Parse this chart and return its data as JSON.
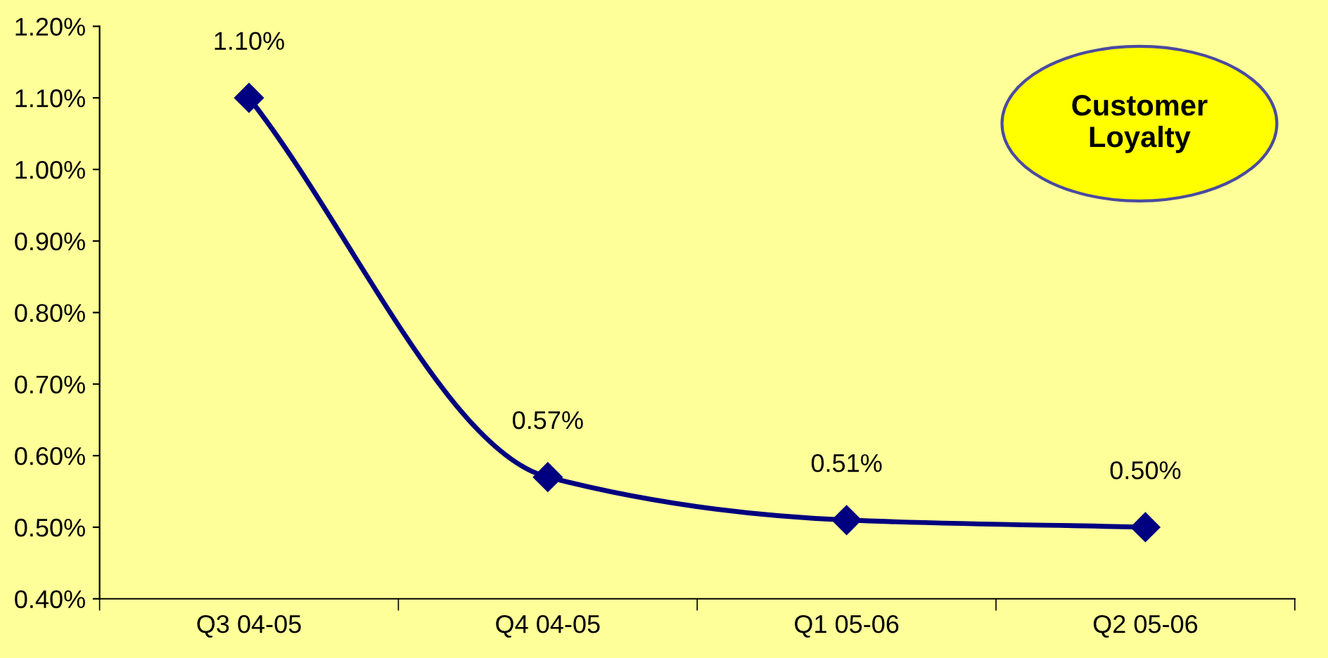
{
  "chart_data": {
    "type": "line",
    "categories": [
      "Q3 04-05",
      "Q4 04-05",
      "Q1 05-06",
      "Q2 05-06"
    ],
    "series": [
      {
        "color": "#000080",
        "values": [
          1.1,
          0.57,
          0.51,
          0.5
        ],
        "value_labels": [
          "1.10%",
          "0.57%",
          "0.51%",
          "0.50%"
        ]
      }
    ],
    "ylim": [
      0.4,
      1.2
    ],
    "yticks": [
      {
        "value": 0.4,
        "label": "0.40%"
      },
      {
        "value": 0.5,
        "label": "0.50%"
      },
      {
        "value": 0.6,
        "label": "0.60%"
      },
      {
        "value": 0.7,
        "label": "0.70%"
      },
      {
        "value": 0.8,
        "label": "0.80%"
      },
      {
        "value": 0.9,
        "label": "0.90%"
      },
      {
        "value": 1.0,
        "label": "1.00%"
      },
      {
        "value": 1.1,
        "label": "1.10%"
      },
      {
        "value": 1.2,
        "label": "1.20%"
      }
    ],
    "annotations": [
      "Customer\nLoyalty"
    ],
    "marker": "diamond",
    "line_style": "solid",
    "grid": false
  }
}
